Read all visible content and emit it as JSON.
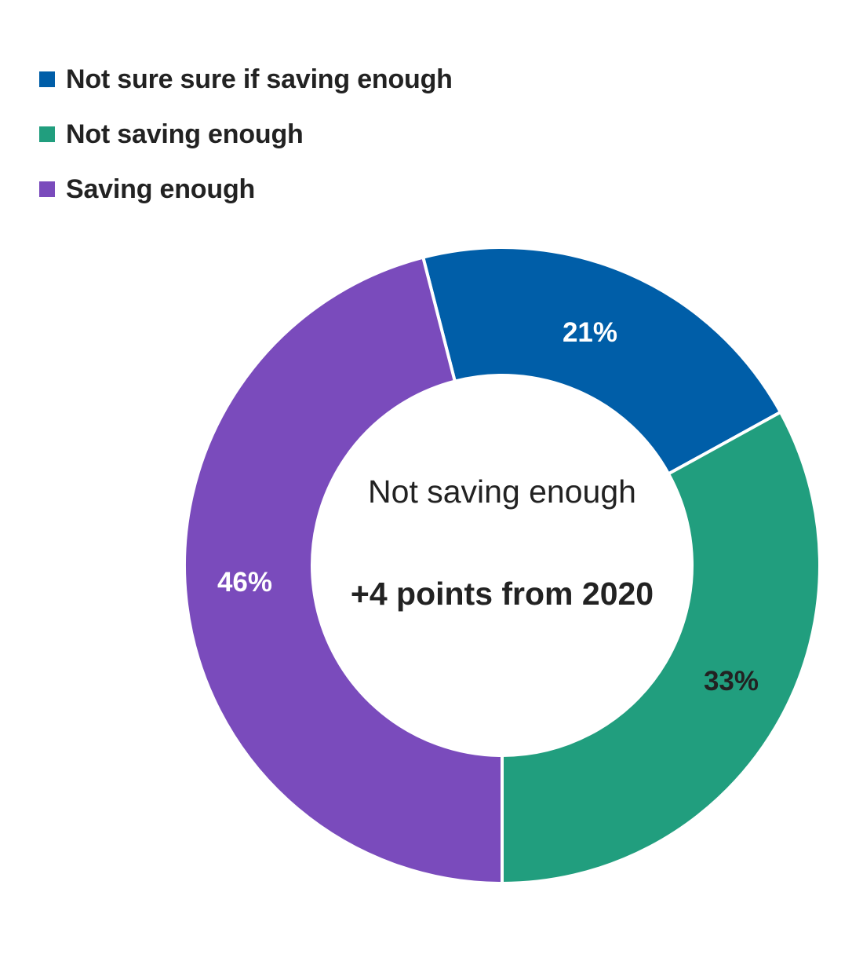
{
  "legend": [
    {
      "label": "Not sure sure if saving enough",
      "color": "#005EA8"
    },
    {
      "label": "Not saving enough",
      "color": "#219E7E"
    },
    {
      "label": "Saving enough",
      "color": "#7A4BBC"
    }
  ],
  "center": {
    "line1": "Not saving enough",
    "line2": "+4 points from 2020"
  },
  "slices": [
    {
      "label": "21%",
      "text_color": "#ffffff"
    },
    {
      "label": "33%",
      "text_color": "#222222"
    },
    {
      "label": "46%",
      "text_color": "#ffffff"
    }
  ],
  "chart_data": {
    "type": "pie",
    "subtype": "donut",
    "categories": [
      "Not sure sure if saving enough",
      "Not saving enough",
      "Saving enough"
    ],
    "values": [
      21,
      33,
      46
    ],
    "value_labels": [
      "21%",
      "33%",
      "46%"
    ],
    "colors": [
      "#005EA8",
      "#219E7E",
      "#7A4BBC"
    ],
    "title": "",
    "center_annotation": "Not saving enough +4 points from 2020",
    "legend_position": "top-left"
  }
}
